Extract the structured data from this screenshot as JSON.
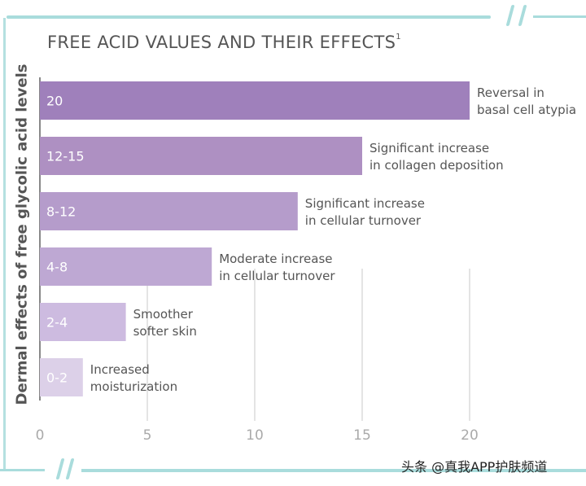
{
  "chart_data": {
    "type": "bar",
    "orientation": "horizontal",
    "title": "FREE ACID VALUES AND THEIR EFFECTS",
    "title_superscript": "1",
    "ylabel": "Dermal effects of free glycolic acid levels",
    "xlabel": "",
    "xlim": [
      0,
      20
    ],
    "xticks": [
      "0",
      "5",
      "10",
      "15",
      "20"
    ],
    "grid": "vertical lines at 5, 10, 15, 20",
    "categories": [
      "20",
      "12-15",
      "8-12",
      "4-8",
      "2-4",
      "0-2"
    ],
    "values": [
      20,
      15,
      12,
      8,
      4,
      2
    ],
    "annotations": [
      [
        "Reversal in",
        "basal cell atypia"
      ],
      [
        "Significant increase",
        "in collagen deposition"
      ],
      [
        "Significant increase",
        "in cellular turnover"
      ],
      [
        "Moderate increase",
        "in cellular turnover"
      ],
      [
        "Smoother",
        "softer skin"
      ],
      [
        "Increased",
        "moisturization"
      ]
    ],
    "colors": [
      "#9f80bb",
      "#ae90c2",
      "#b59ccb",
      "#bea8d3",
      "#cdbbe0",
      "#dcd0e8"
    ]
  },
  "watermark": "头条 @真我APP护肤频道",
  "frame_color": "#a9dcdc"
}
